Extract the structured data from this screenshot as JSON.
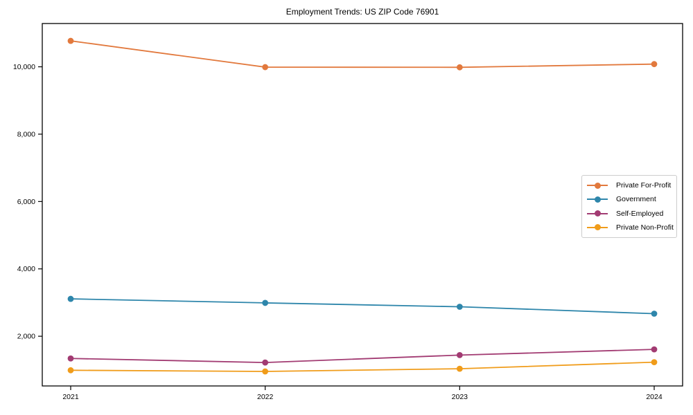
{
  "chart_data": {
    "type": "line",
    "title": "Employment Trends: US ZIP Code 76901",
    "xlabel": "",
    "ylabel": "",
    "categories": [
      "2021",
      "2022",
      "2023",
      "2024"
    ],
    "series": [
      {
        "name": "Private For-Profit",
        "color": "#e2793d",
        "values": [
          10770,
          9990,
          9985,
          10080
        ]
      },
      {
        "name": "Government",
        "color": "#2e86ab",
        "values": [
          3110,
          2990,
          2875,
          2670
        ]
      },
      {
        "name": "Self-Employed",
        "color": "#a23b72",
        "values": [
          1340,
          1220,
          1440,
          1610
        ]
      },
      {
        "name": "Private Non-Profit",
        "color": "#f09c1a",
        "values": [
          990,
          955,
          1035,
          1230
        ]
      }
    ],
    "y_ticks": [
      2000,
      4000,
      6000,
      8000,
      10000
    ],
    "y_tick_labels": [
      "2,000",
      "4,000",
      "6,000",
      "8,000",
      "10,000"
    ],
    "ylim": [
      524,
      11285
    ],
    "grid": false,
    "legend_position": "center-right",
    "marker": "circle",
    "line_width": 1.8,
    "marker_radius": 4.4,
    "axis_color": "#000000",
    "background_color": "#ffffff"
  }
}
